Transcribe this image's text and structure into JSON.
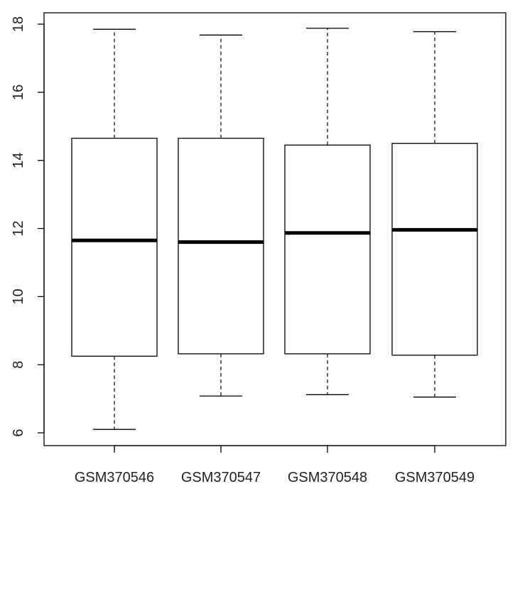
{
  "chart_data": {
    "type": "box",
    "title": "",
    "xlabel": "",
    "ylabel": "",
    "categories": [
      "GSM370546",
      "GSM370547",
      "GSM370548",
      "GSM370549"
    ],
    "boxes": [
      {
        "name": "GSM370546",
        "min": 6.1,
        "q1": 8.25,
        "median": 11.65,
        "q3": 14.65,
        "max": 17.85
      },
      {
        "name": "GSM370547",
        "min": 7.08,
        "q1": 8.32,
        "median": 11.6,
        "q3": 14.65,
        "max": 17.68
      },
      {
        "name": "GSM370548",
        "min": 7.12,
        "q1": 8.32,
        "median": 11.87,
        "q3": 14.45,
        "max": 17.88
      },
      {
        "name": "GSM370549",
        "min": 7.05,
        "q1": 8.28,
        "median": 11.96,
        "q3": 14.5,
        "max": 17.78
      }
    ],
    "ylim": [
      5.6,
      18.35
    ],
    "yticks": [
      6,
      8,
      10,
      12,
      14,
      16,
      18
    ],
    "ytick_labels": [
      "6",
      "8",
      "10",
      "12",
      "14",
      "16",
      "18"
    ],
    "grid": false,
    "legend": "none"
  }
}
